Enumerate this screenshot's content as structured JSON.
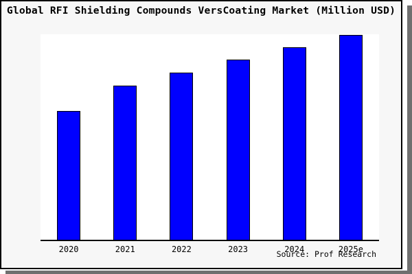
{
  "chart_data": {
    "type": "bar",
    "title": "Global RFI Shielding Compounds VersCoating Market (Million USD)",
    "categories": [
      "2020",
      "2021",
      "2022",
      "2023",
      "2024",
      "2025e"
    ],
    "values": [
      62.9,
      75.3,
      81.6,
      87.8,
      93.9,
      100
    ],
    "values_note": "no y-axis ticks or data labels shown; values estimated from bar heights as percent of the 2025e bar (tallest = 100)",
    "xlabel": "",
    "ylabel": "",
    "ylim": [
      0,
      100
    ],
    "grid": false,
    "legend": false,
    "bar_color": "#0000ff",
    "bar_edge_color": "#000000",
    "source": "Source: Prof Research"
  },
  "colors": {
    "card_background": "#f7f7f7",
    "plot_background": "#ffffff",
    "border": "#000000",
    "axis": "#000000",
    "text": "#000000",
    "shadow": "#6f6f6f"
  }
}
